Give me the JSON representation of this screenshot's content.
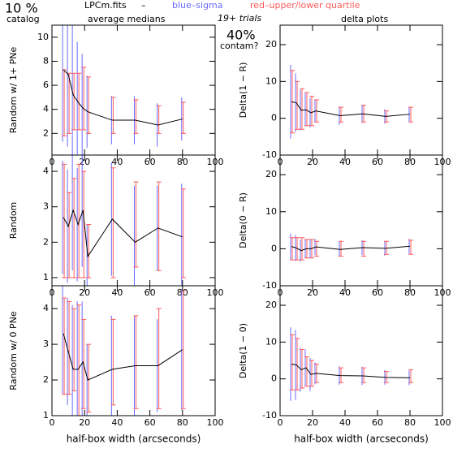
{
  "header": {
    "catalog_pct": "10 %",
    "catalog": "catalog",
    "file": "LPCm.fits",
    "dash": "–",
    "blue": "blue–sigma",
    "red": "red–upper/lower quartile",
    "left_title": "average medians",
    "trials": "19+ trials",
    "contam_pct": "40%",
    "contam": "contam?",
    "right_title": "delta plots"
  },
  "chart_data": [
    {
      "type": "line",
      "ylabel": "Random w/ 1+ PNe",
      "x": [
        7,
        10,
        13,
        16,
        19,
        22,
        37,
        51,
        65,
        80
      ],
      "values": [
        7.3,
        6.9,
        5.2,
        4.6,
        4.1,
        3.8,
        3.1,
        3.1,
        2.7,
        3.2
      ],
      "sigma": [
        6,
        6,
        6,
        5,
        4.5,
        3,
        2,
        2,
        1.8,
        1.8
      ],
      "q_low": [
        1.8,
        2,
        2.3,
        2.3,
        2.3,
        2,
        2,
        2,
        2,
        2
      ],
      "q_high": [
        7.3,
        7,
        7,
        7,
        7.5,
        6.7,
        5,
        4.8,
        4.3,
        4.6
      ],
      "color": "#000000",
      "sigma_color": "#6a6aff",
      "quartile_color": "#ff5a5a",
      "xlim": [
        0,
        100
      ],
      "ylim": [
        0.2,
        11
      ],
      "xticks": [
        0,
        20,
        40,
        60,
        80,
        100
      ],
      "yticks": [
        2,
        4,
        6,
        8,
        10
      ]
    },
    {
      "type": "line",
      "ylabel": "Delta(1 − R)",
      "x": [
        7,
        10,
        13,
        16,
        19,
        22,
        37,
        51,
        65,
        80
      ],
      "values": [
        4.5,
        4.2,
        2.2,
        2.3,
        1.5,
        2.0,
        0.7,
        1.2,
        0.5,
        1.1
      ],
      "sigma": [
        10,
        8,
        5.5,
        4.5,
        4,
        3,
        2.5,
        2.5,
        2,
        2
      ],
      "q_low": [
        -4,
        -3,
        -3,
        -2,
        -2,
        -1,
        -1,
        -1,
        -1,
        -1
      ],
      "q_high": [
        13,
        10,
        8,
        7,
        6,
        5,
        3,
        3.5,
        2,
        3
      ],
      "color": "#000000",
      "sigma_color": "#6a6aff",
      "quartile_color": "#ff5a5a",
      "xlim": [
        0,
        100
      ],
      "ylim": [
        -10,
        25.3
      ],
      "xticks": [
        0,
        20,
        40,
        60,
        80,
        100
      ],
      "yticks": [
        -10,
        0,
        10,
        20
      ]
    },
    {
      "type": "line",
      "ylabel": "Random",
      "x": [
        7,
        10,
        13,
        16,
        19,
        22,
        37,
        51,
        65,
        80
      ],
      "values": [
        2.7,
        2.45,
        2.9,
        2.5,
        2.9,
        1.6,
        2.65,
        2.0,
        2.4,
        2.15
      ],
      "sigma": [
        1.6,
        1.6,
        1.7,
        1.6,
        1.6,
        0.9,
        1.6,
        1.6,
        1.2,
        1.5
      ],
      "q_low": [
        1,
        1,
        1,
        1,
        1,
        1,
        1,
        1.3,
        1.2,
        1
      ],
      "q_high": [
        4.2,
        3.4,
        3.8,
        4.2,
        4,
        2.5,
        4.1,
        3.7,
        3.7,
        3.5
      ],
      "color": "#000000",
      "sigma_color": "#6a6aff",
      "quartile_color": "#ff5a5a",
      "xlim": [
        0,
        100
      ],
      "ylim": [
        0.77,
        4.46
      ],
      "xticks": [
        0,
        20,
        40,
        60,
        80,
        100
      ],
      "yticks": [
        1,
        2,
        3,
        4
      ]
    },
    {
      "type": "line",
      "ylabel": "Delta(0 − R)",
      "x": [
        7,
        10,
        13,
        16,
        19,
        22,
        37,
        51,
        65,
        80
      ],
      "values": [
        0.6,
        0.2,
        -0.5,
        0,
        0,
        0.5,
        -0.2,
        0.3,
        0.1,
        0.7
      ],
      "sigma": [
        3.5,
        3.5,
        3,
        2.5,
        2.5,
        2.2,
        2,
        2,
        2,
        2
      ],
      "q_low": [
        -3,
        -3,
        -3,
        -2.5,
        -2.5,
        -2,
        -2,
        -2,
        -1.5,
        -1.5
      ],
      "q_high": [
        3,
        3,
        3,
        2.5,
        2.5,
        2,
        2,
        2,
        2,
        2.3
      ],
      "color": "#000000",
      "sigma_color": "#6a6aff",
      "quartile_color": "#ff5a5a",
      "xlim": [
        0,
        100
      ],
      "ylim": [
        -10,
        25.3
      ],
      "xticks": [
        0,
        20,
        40,
        60,
        80,
        100
      ],
      "yticks": [
        -10,
        0,
        10,
        20
      ]
    },
    {
      "type": "line",
      "ylabel": "Random w/ 0 PNe",
      "xlabel": "half-box width (arcseconds)",
      "x": [
        7,
        10,
        13,
        16,
        19,
        22,
        37,
        51,
        65,
        80
      ],
      "values": [
        3.3,
        2.8,
        2.3,
        2.3,
        2.5,
        2.0,
        2.3,
        2.4,
        2.4,
        2.85
      ],
      "sigma": [
        1.7,
        1.5,
        1.8,
        1.9,
        1.7,
        1,
        1.5,
        1.4,
        1.3,
        1.7
      ],
      "q_low": [
        1.6,
        1.6,
        1.7,
        1,
        1.2,
        1.1,
        1.3,
        1.2,
        1.2,
        1.2
      ],
      "q_high": [
        4.3,
        4.2,
        4,
        4.1,
        3.7,
        3,
        3.7,
        3.8,
        4,
        4.5
      ],
      "color": "#000000",
      "sigma_color": "#6a6aff",
      "quartile_color": "#ff5a5a",
      "xlim": [
        0,
        100
      ],
      "ylim": [
        1,
        4.64
      ],
      "xticks": [
        0,
        20,
        40,
        60,
        80,
        100
      ],
      "yticks": [
        1,
        2,
        3,
        4
      ]
    },
    {
      "type": "line",
      "ylabel": "Delta(1 − 0)",
      "xlabel": "half-box width (arcseconds)",
      "x": [
        7,
        10,
        13,
        16,
        19,
        22,
        37,
        51,
        65,
        80
      ],
      "values": [
        4,
        3.8,
        2.5,
        3.0,
        1.2,
        1.5,
        0.9,
        0.8,
        0.4,
        0.3
      ],
      "sigma": [
        10,
        9.5,
        6,
        5,
        4.5,
        3,
        2.5,
        2.5,
        2,
        2
      ],
      "q_low": [
        -3,
        -3,
        -2.5,
        -2,
        -2,
        -1,
        -1,
        -1,
        -1,
        -1
      ],
      "q_high": [
        12,
        11,
        8,
        6,
        5,
        4,
        3,
        3,
        2,
        2.5
      ],
      "color": "#000000",
      "sigma_color": "#6a6aff",
      "quartile_color": "#ff5a5a",
      "xlim": [
        0,
        100
      ],
      "ylim": [
        -10,
        25.3
      ],
      "xticks": [
        0,
        20,
        40,
        60,
        80,
        100
      ],
      "yticks": [
        -10,
        0,
        10,
        20
      ]
    }
  ]
}
